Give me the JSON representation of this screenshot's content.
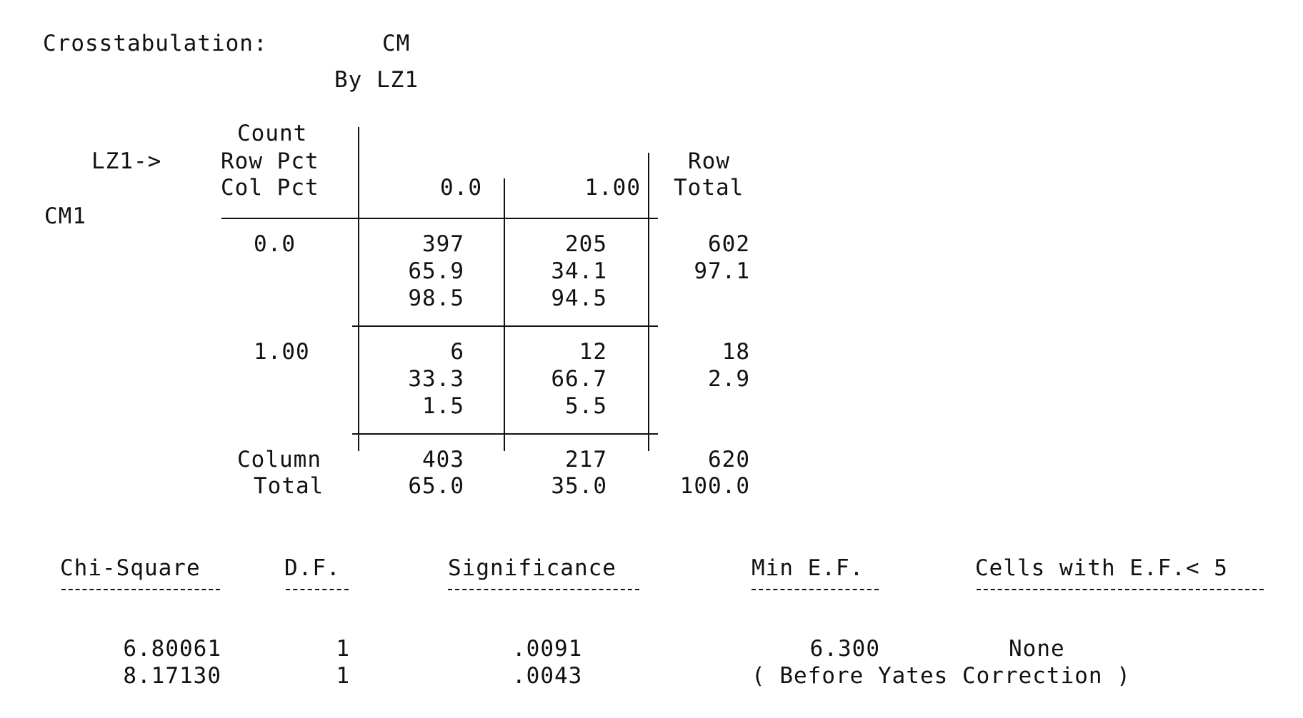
{
  "header": {
    "label": "Crosstabulation:",
    "row_variable": "CM",
    "by_label": "By LZ1"
  },
  "table": {
    "col_variable_label": "LZ1->",
    "row_variable_label": "CM1",
    "legend": [
      "Count",
      "Row Pct",
      "Col Pct"
    ],
    "col_headers": [
      "0.0",
      "1.00"
    ],
    "row_total_header": [
      "Row",
      "Total"
    ],
    "rows": [
      {
        "label": "0.0",
        "cells": [
          [
            "397",
            "65.9",
            "98.5"
          ],
          [
            "205",
            "34.1",
            "94.5"
          ]
        ],
        "total": [
          "602",
          "97.1"
        ]
      },
      {
        "label": "1.00",
        "cells": [
          [
            "6",
            "33.3",
            "1.5"
          ],
          [
            "12",
            "66.7",
            "5.5"
          ]
        ],
        "total": [
          "18",
          "2.9"
        ]
      }
    ],
    "column_total_label": [
      "Column",
      "Total"
    ],
    "column_totals": [
      [
        "403",
        "65.0"
      ],
      [
        "217",
        "35.0"
      ]
    ],
    "grand_total": [
      "620",
      "100.0"
    ]
  },
  "stats": {
    "headers": [
      "Chi-Square",
      "D.F.",
      "Significance",
      "Min E.F.",
      "Cells with E.F.< 5"
    ],
    "rows": [
      {
        "chi_square": "6.80061",
        "df": "1",
        "significance": ".0091",
        "min_ef": "6.300",
        "cells": "None"
      },
      {
        "chi_square": "8.17130",
        "df": "1",
        "significance": ".0043",
        "note": "( Before Yates Correction )"
      }
    ]
  }
}
